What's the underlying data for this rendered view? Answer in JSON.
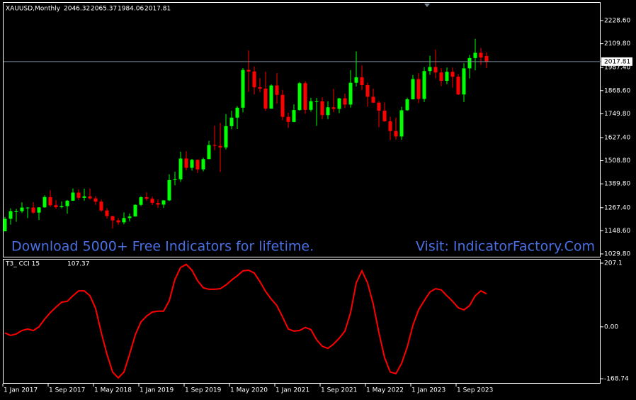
{
  "chart_data": [
    {
      "type": "candlestick",
      "title": "XAUUSD,Monthly",
      "header_values": [
        2046.32,
        2065.37,
        1984.06,
        2017.81
      ],
      "annotations": [
        "Download 5000+ Free Indicators for lifetime.",
        "Visit: IndicatorFactory.Com"
      ],
      "current_price": 2017.81,
      "up_color": "#00ff00",
      "down_color": "#ff0000",
      "grid": false,
      "categories": [
        "1 Jan 2017",
        null,
        null,
        null,
        null,
        null,
        null,
        null,
        "1 Sep 2017",
        null,
        null,
        null,
        null,
        null,
        null,
        null,
        "1 May 2018",
        null,
        null,
        null,
        null,
        null,
        null,
        null,
        "1 Jan 2019",
        null,
        null,
        null,
        null,
        null,
        null,
        null,
        "1 Sep 2019",
        null,
        null,
        null,
        null,
        null,
        null,
        null,
        "1 May 2020",
        null,
        null,
        null,
        null,
        null,
        null,
        null,
        "1 Jan 2021",
        null,
        null,
        null,
        null,
        null,
        null,
        null,
        "1 Sep 2021",
        null,
        null,
        null,
        null,
        null,
        null,
        null,
        "1 May 2022",
        null,
        null,
        null,
        null,
        null,
        null,
        null,
        "1 Jan 2023",
        null,
        null,
        null,
        null,
        null,
        null,
        null,
        "1 Sep 2023",
        null,
        null,
        null,
        null,
        null
      ],
      "open": [
        1146,
        1210,
        1249,
        1249,
        1268,
        1268,
        1242,
        1269,
        1322,
        1280,
        1270,
        1275,
        1303,
        1345,
        1318,
        1325,
        1315,
        1298,
        1253,
        1224,
        1202,
        1192,
        1214,
        1222,
        1282,
        1321,
        1313,
        1292,
        1283,
        1305,
        1409,
        1413,
        1520,
        1472,
        1513,
        1464,
        1517,
        1589,
        1585,
        1577,
        1686,
        1730,
        1781,
        1975,
        1967,
        1886,
        1879,
        1776,
        1895,
        1847,
        1734,
        1708,
        1769,
        1907,
        1770,
        1814,
        1814,
        1743,
        1783,
        1775,
        1829,
        1797,
        1909,
        1937,
        1897,
        1837,
        1807,
        1766,
        1711,
        1661,
        1633,
        1768,
        1824,
        1928,
        1826,
        1969,
        1990,
        1962,
        1919,
        1965,
        1940,
        1849,
        1983,
        2036,
        2063,
        2046.32
      ],
      "high": [
        1220,
        1264,
        1261,
        1295,
        1270,
        1296,
        1270,
        1331,
        1357,
        1306,
        1299,
        1307,
        1366,
        1361,
        1365,
        1365,
        1326,
        1309,
        1265,
        1224,
        1214,
        1243,
        1237,
        1284,
        1326,
        1346,
        1324,
        1310,
        1306,
        1439,
        1452,
        1555,
        1557,
        1518,
        1516,
        1524,
        1611,
        1689,
        1703,
        1748,
        1765,
        1789,
        1984,
        2075,
        1992,
        1933,
        1966,
        1900,
        1959,
        1872,
        1755,
        1798,
        1913,
        1916,
        1832,
        1831,
        1834,
        1814,
        1877,
        1831,
        1853,
        1974,
        2070,
        1998,
        1910,
        1879,
        1814,
        1808,
        1735,
        1730,
        1786,
        1833,
        1949,
        1959,
        1989,
        2048,
        2079,
        1984,
        1987,
        1987,
        1953,
        2009,
        2052,
        2135,
        2088,
        2065.37
      ],
      "low": [
        1146,
        1180,
        1195,
        1240,
        1214,
        1236,
        1204,
        1267,
        1272,
        1261,
        1264,
        1236,
        1302,
        1307,
        1303,
        1309,
        1282,
        1246,
        1211,
        1160,
        1180,
        1182,
        1196,
        1221,
        1275,
        1302,
        1281,
        1266,
        1266,
        1301,
        1382,
        1400,
        1459,
        1458,
        1445,
        1454,
        1517,
        1563,
        1451,
        1567,
        1670,
        1671,
        1757,
        1863,
        1849,
        1860,
        1764,
        1775,
        1802,
        1717,
        1677,
        1706,
        1766,
        1750,
        1761,
        1688,
        1721,
        1721,
        1758,
        1753,
        1780,
        1782,
        1890,
        1872,
        1787,
        1805,
        1681,
        1709,
        1614,
        1617,
        1616,
        1765,
        1823,
        1805,
        1810,
        1950,
        1932,
        1893,
        1902,
        1884,
        1846,
        1810,
        1931,
        1973,
        2001,
        1984.06
      ],
      "close": [
        1210,
        1249,
        1249,
        1268,
        1268,
        1242,
        1269,
        1322,
        1280,
        1270,
        1275,
        1303,
        1345,
        1318,
        1325,
        1315,
        1298,
        1253,
        1224,
        1202,
        1192,
        1214,
        1222,
        1282,
        1321,
        1313,
        1292,
        1283,
        1305,
        1409,
        1413,
        1520,
        1472,
        1513,
        1464,
        1517,
        1589,
        1585,
        1577,
        1686,
        1730,
        1781,
        1975,
        1967,
        1886,
        1879,
        1776,
        1895,
        1847,
        1734,
        1708,
        1769,
        1907,
        1770,
        1814,
        1814,
        1743,
        1783,
        1775,
        1829,
        1797,
        1909,
        1937,
        1897,
        1837,
        1807,
        1766,
        1711,
        1661,
        1633,
        1768,
        1824,
        1928,
        1826,
        1969,
        1990,
        1962,
        1919,
        1965,
        1940,
        1849,
        1983,
        2036,
        2063,
        2039,
        2017.81
      ],
      "ylim": [
        1015.2,
        2327
      ],
      "yticks": [
        {
          "value": 2228.6,
          "label": "2228.60"
        },
        {
          "value": 2109.8,
          "label": "2109.80"
        },
        {
          "value": 1987.4,
          "label": "1987.40"
        },
        {
          "value": 1868.6,
          "label": "1868.60"
        },
        {
          "value": 1749.8,
          "label": "1749.80"
        },
        {
          "value": 1627.4,
          "label": "1627.40"
        },
        {
          "value": 1508.8,
          "label": "1508.80"
        },
        {
          "value": 1389.8,
          "label": "1389.80"
        },
        {
          "value": 1267.4,
          "label": "1267.40"
        },
        {
          "value": 1148.6,
          "label": "1148.60"
        },
        {
          "value": 1029.8,
          "label": "1029.80"
        }
      ]
    },
    {
      "type": "line",
      "title": "T3_ CCI 15",
      "current_value": 107.37,
      "color": "#ff0000",
      "values": [
        -20,
        -28,
        -23,
        -12,
        -7,
        -12,
        0,
        25,
        46,
        64,
        80,
        83,
        101,
        117,
        117,
        101,
        60,
        -19,
        -89,
        -147,
        -166,
        -147,
        -89,
        -26,
        16,
        35,
        48,
        51,
        51,
        85,
        154,
        193,
        203,
        184,
        150,
        127,
        122,
        122,
        124,
        136,
        152,
        166,
        182,
        184,
        175,
        147,
        115,
        90,
        69,
        32,
        -7,
        -14,
        -12,
        -2,
        -9,
        -42,
        -63,
        -70,
        -56,
        -37,
        -14,
        46,
        143,
        182,
        143,
        74,
        -19,
        -100,
        -147,
        -152,
        -119,
        -66,
        5,
        55,
        85,
        113,
        124,
        120,
        101,
        83,
        62,
        55,
        69,
        101,
        117,
        107.37
      ],
      "ylim": [
        -182.5,
        218.6
      ],
      "yticks": [
        207.1,
        {
          "value": 0,
          "label": "0.00"
        },
        -168.74
      ]
    }
  ]
}
